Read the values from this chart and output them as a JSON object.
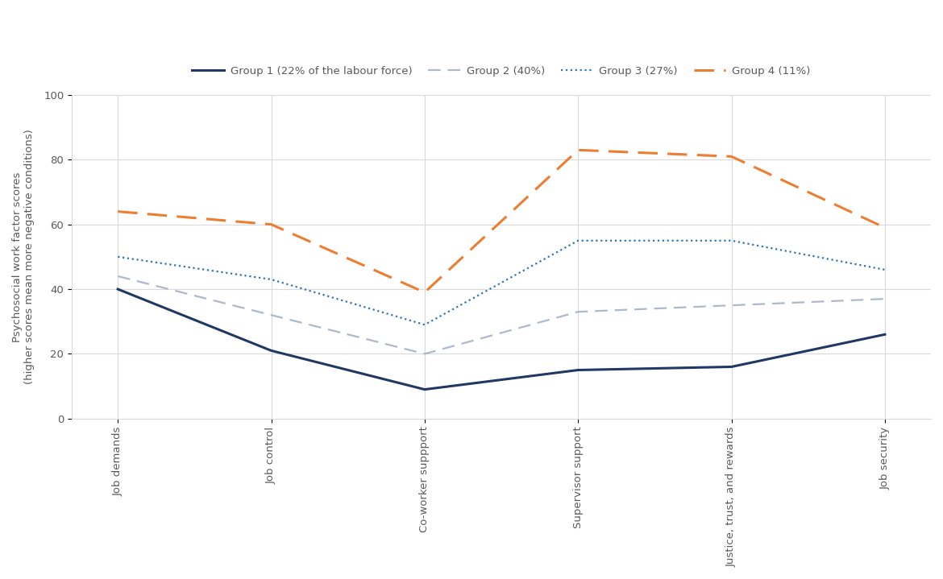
{
  "categories": [
    "Job demands",
    "Job control",
    "Co-worker suppport",
    "Supervisor support",
    "Justice, trust, and rewards",
    "Job security"
  ],
  "group1": [
    40,
    21,
    9,
    15,
    16,
    26
  ],
  "group2": [
    44,
    32,
    20,
    33,
    35,
    37
  ],
  "group3": [
    50,
    43,
    29,
    55,
    55,
    46
  ],
  "group4": [
    64,
    60,
    39,
    83,
    81,
    59
  ],
  "group1_label": "Group 1 (22% of the labour force)",
  "group2_label": "Group 2 (40%)",
  "group3_label": "Group 3 (27%)",
  "group4_label": "Group 4 (11%)",
  "group1_color": "#1f3864",
  "group2_color": "#adb9ca",
  "group3_color": "#2e75b6",
  "group4_color": "#ed7d31",
  "ylabel": "Psychosocial work factor scores\n(higher scores mean more negative conditions)",
  "ylim": [
    0,
    100
  ],
  "yticks": [
    0,
    20,
    40,
    60,
    80,
    100
  ],
  "background_color": "#ffffff",
  "grid_color": "#d9d9d9",
  "label_fontsize": 9.5,
  "tick_fontsize": 9.5,
  "legend_fontsize": 9.5
}
